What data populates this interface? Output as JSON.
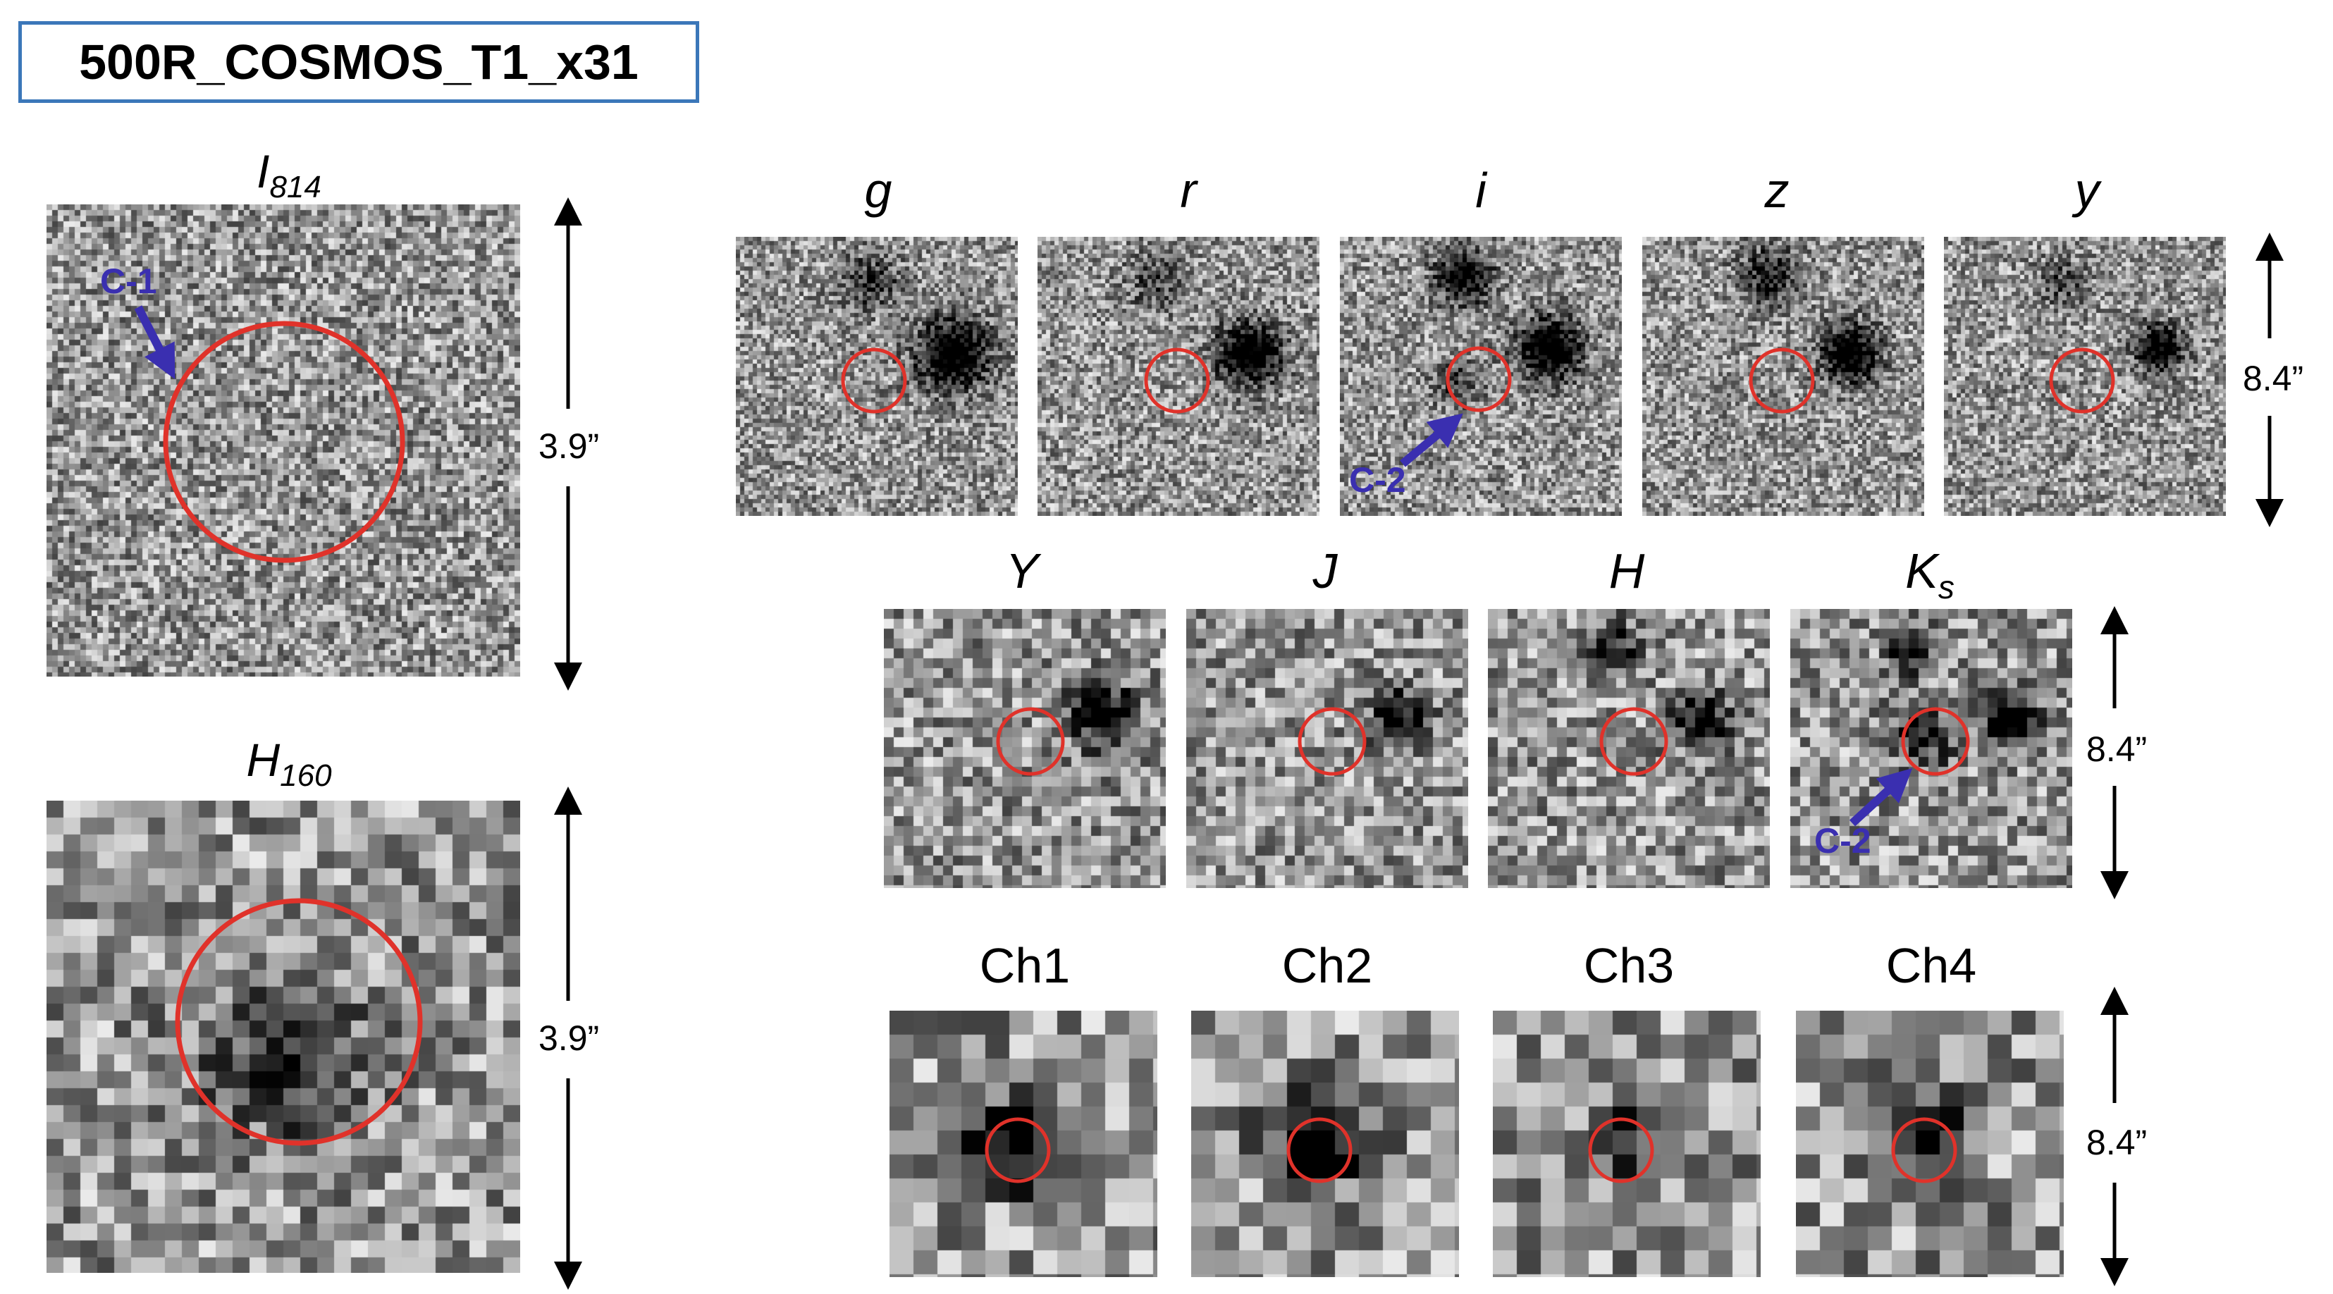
{
  "title": "500R_COSMOS_T1_x31",
  "hst": [
    {
      "id": "I814",
      "base": "I",
      "sub": "814"
    },
    {
      "id": "H160",
      "base": "H",
      "sub": "160"
    }
  ],
  "row1": [
    "g",
    "r",
    "i",
    "z",
    "y"
  ],
  "row2": {
    "Y": "Y",
    "J": "J",
    "H": "H",
    "Ks_base": "K",
    "Ks_sub": "s"
  },
  "row3": [
    "Ch1",
    "Ch2",
    "Ch3",
    "Ch4"
  ],
  "scales": {
    "hst": "3.9”",
    "ground": "8.4”"
  },
  "markers": {
    "c1": "C-1",
    "c2": "C-2"
  },
  "colors": {
    "circle": "#e0322a",
    "arrow": "#3a2fb0",
    "border": "#3b77b9"
  }
}
